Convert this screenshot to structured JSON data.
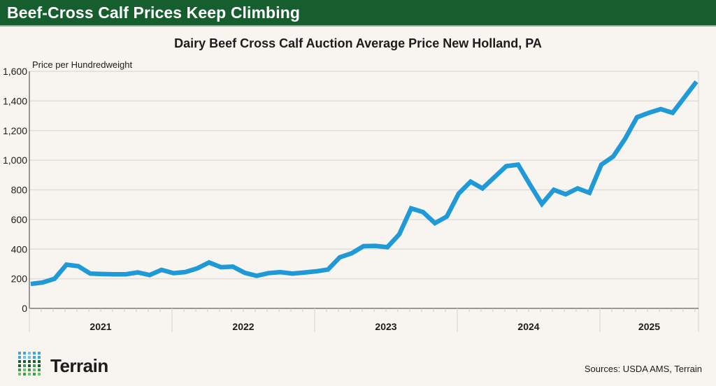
{
  "banner": {
    "title": "Beef-Cross Calf Prices Keep Climbing"
  },
  "footer": {
    "logo_text": "Terrain",
    "source": "Sources: USDA AMS, Terrain"
  },
  "colors": {
    "banner": "#175e2e",
    "line": "#1f9ad6",
    "background": "#f8f4f0",
    "grid": "#e2dcd6",
    "axis": "#7a7672"
  },
  "chart_data": {
    "type": "line",
    "title": "Dairy Beef Cross Calf Auction Average Price New Holland, PA",
    "ylabel": "Price per Hundredweight",
    "xlabel": "",
    "ylim": [
      0,
      1600
    ],
    "yticks": [
      0,
      200,
      400,
      600,
      800,
      1000,
      1200,
      1400,
      1600
    ],
    "ytick_labels": [
      "0",
      "200",
      "400",
      "600",
      "800",
      "1,000",
      "1,200",
      "1,400",
      "1,600"
    ],
    "grid": true,
    "x_year_labels": [
      "2021",
      "2022",
      "2023",
      "2024",
      "2025"
    ],
    "x_start": "2021-01",
    "x_months_total": 57,
    "series": [
      {
        "name": "Average Price",
        "x": [
          "2021-01",
          "2021-02",
          "2021-03",
          "2021-04",
          "2021-05",
          "2021-06",
          "2021-07",
          "2021-08",
          "2021-09",
          "2021-10",
          "2021-11",
          "2021-12",
          "2022-01",
          "2022-02",
          "2022-03",
          "2022-04",
          "2022-05",
          "2022-06",
          "2022-07",
          "2022-08",
          "2022-09",
          "2022-10",
          "2022-11",
          "2022-12",
          "2023-01",
          "2023-02",
          "2023-03",
          "2023-04",
          "2023-05",
          "2023-06",
          "2023-07",
          "2023-08",
          "2023-09",
          "2023-10",
          "2023-11",
          "2023-12",
          "2024-01",
          "2024-02",
          "2024-03",
          "2024-04",
          "2024-05",
          "2024-06",
          "2024-07",
          "2024-08",
          "2024-09",
          "2024-10",
          "2024-11",
          "2024-12",
          "2025-01",
          "2025-02",
          "2025-03",
          "2025-04",
          "2025-05",
          "2025-06",
          "2025-07",
          "2025-08"
        ],
        "values": [
          165,
          175,
          200,
          295,
          285,
          235,
          232,
          230,
          230,
          243,
          225,
          260,
          238,
          245,
          270,
          310,
          278,
          282,
          240,
          220,
          238,
          245,
          235,
          242,
          250,
          262,
          345,
          372,
          420,
          422,
          413,
          500,
          675,
          650,
          575,
          620,
          775,
          855,
          810,
          885,
          960,
          970,
          835,
          705,
          800,
          770,
          810,
          780,
          970,
          1025,
          1145,
          1290,
          1320,
          1345,
          1320,
          1530
        ]
      }
    ]
  }
}
